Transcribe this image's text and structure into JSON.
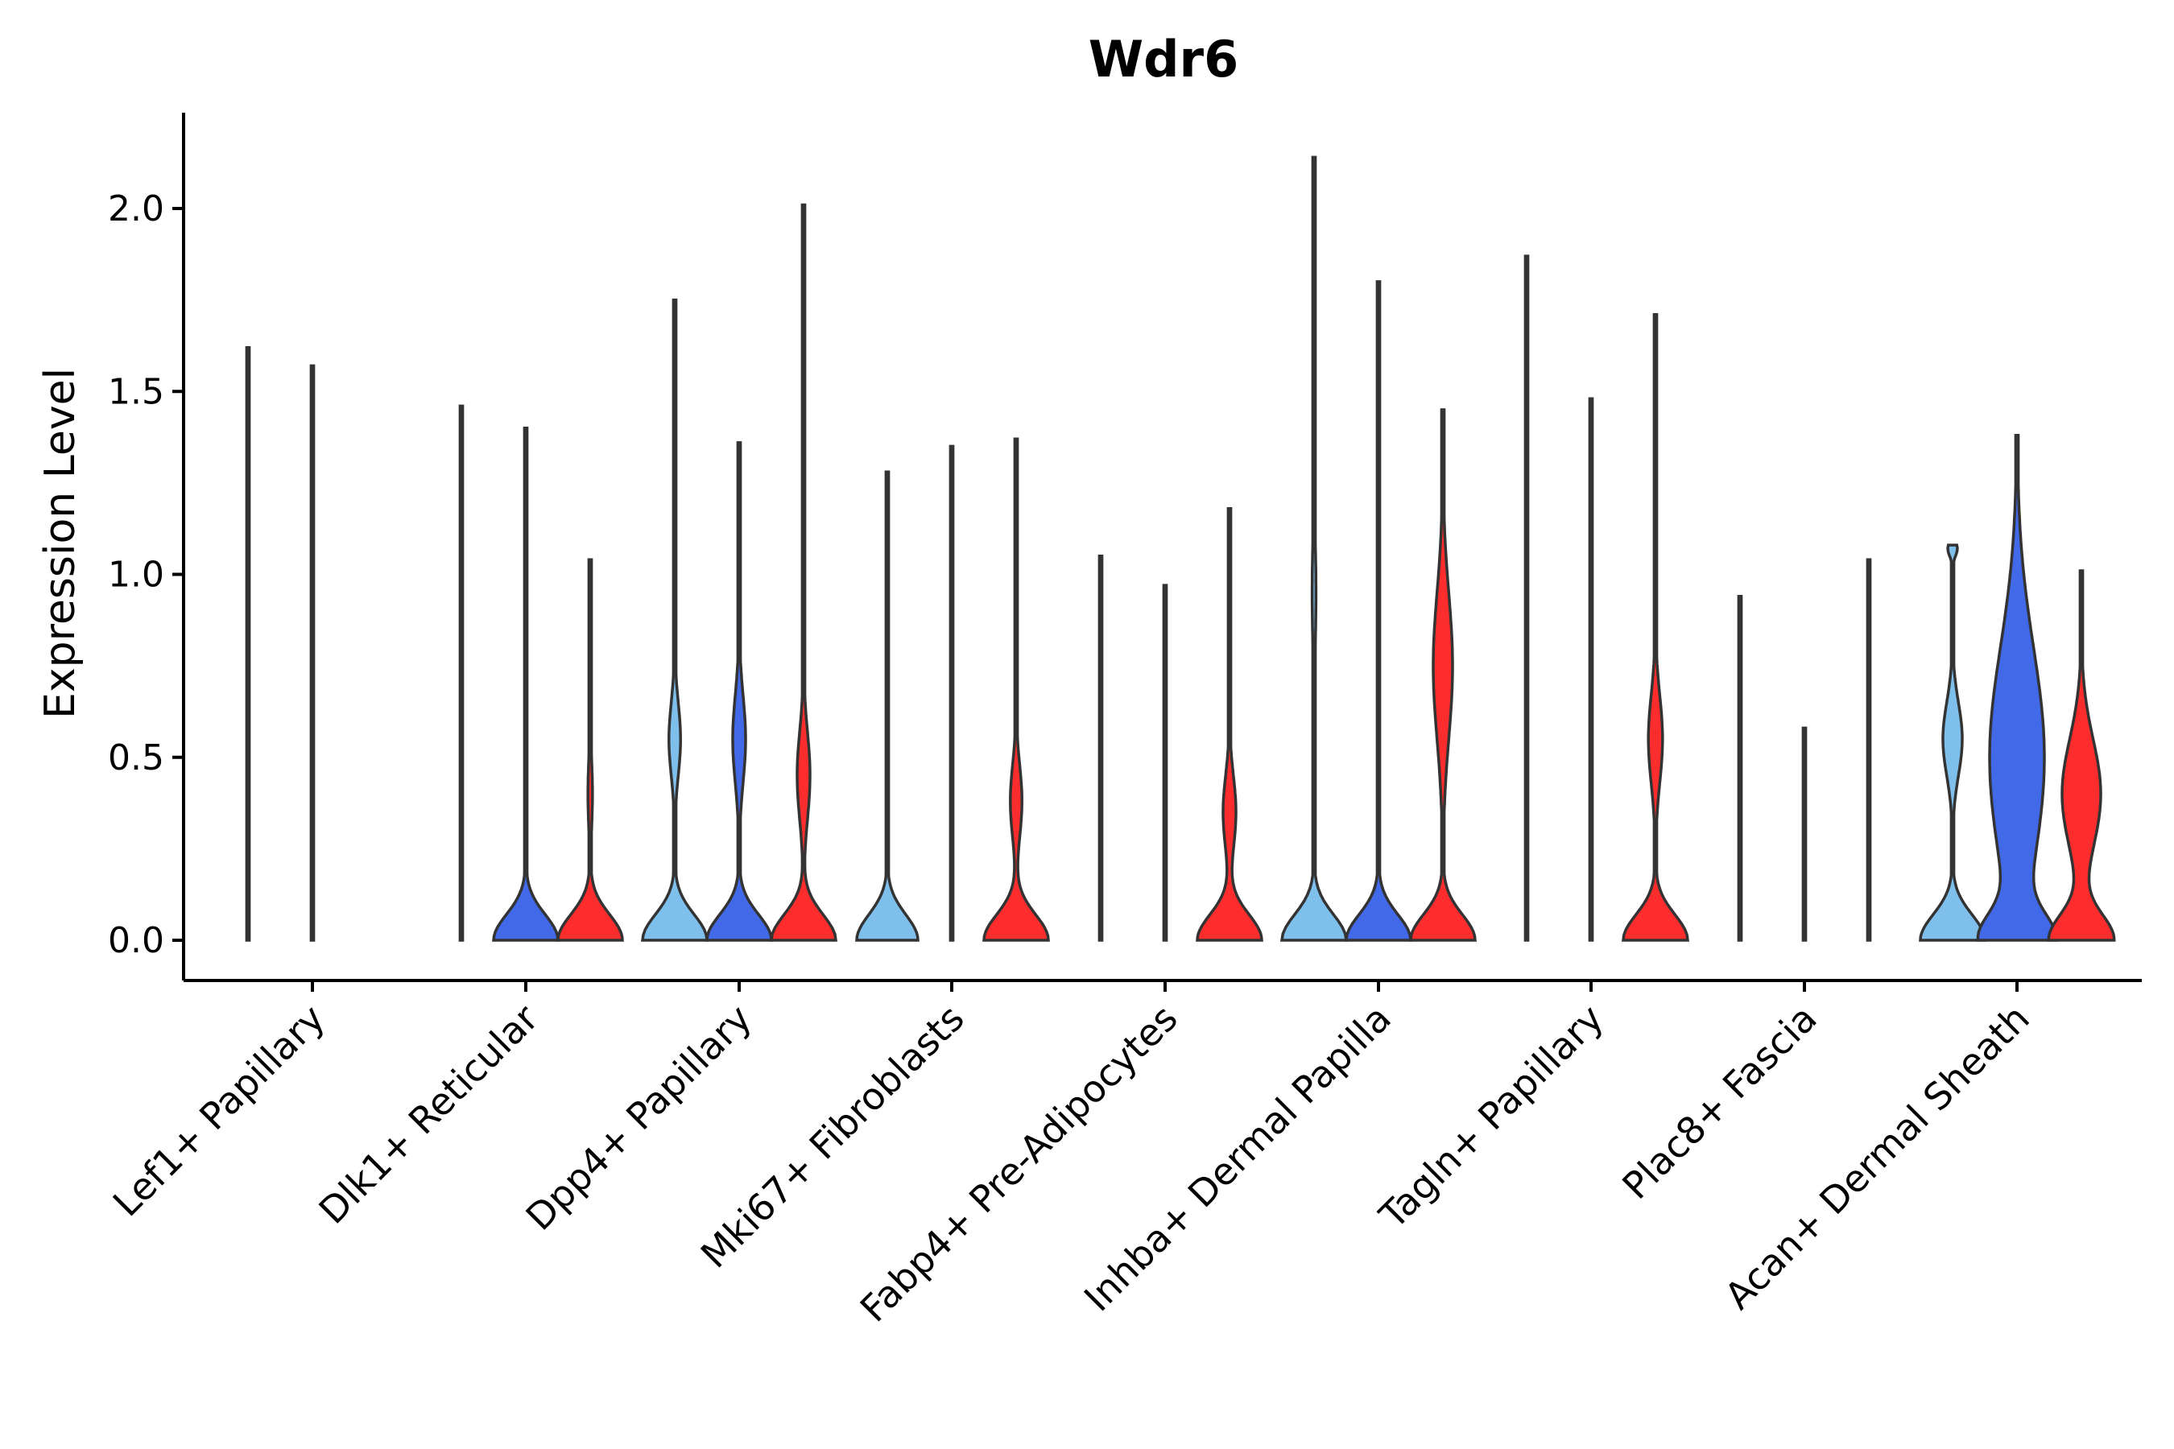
{
  "chart_data": {
    "type": "violin",
    "title": "Wdr6",
    "xlabel": "",
    "ylabel": "Expression Level",
    "ylim": [
      -0.11,
      2.25
    ],
    "yticks": [
      0.0,
      0.5,
      1.0,
      1.5,
      2.0
    ],
    "ytick_labels": [
      "0.0",
      "0.5",
      "1.0",
      "1.5",
      "2.0"
    ],
    "grid": false,
    "legend": "none",
    "series_colors": [
      "#7fbfec",
      "#4169e8",
      "#fe2d2d"
    ],
    "categories": [
      "Lef1+ Papillary",
      "Dlk1+ Reticular",
      "Dpp4+ Papillary",
      "Mki67+ Fibroblasts",
      "Fabp4+ Pre-Adipocytes",
      "Inhba+ Dermal Papilla",
      "Tagln+ Papillary",
      "Plac8+ Fascia",
      "Acan+ Dermal Sheath"
    ],
    "groups": [
      {
        "category": "Lef1+ Papillary",
        "violins": [
          {
            "series": 0,
            "max": 1.62,
            "width0": 0.02,
            "bumps": []
          },
          {
            "series": 1,
            "max": 1.57,
            "width0": 0.02,
            "bumps": []
          },
          {
            "series": 2,
            "max": 0.0,
            "width0": 0.0,
            "bumps": []
          }
        ]
      },
      {
        "category": "Dlk1+ Reticular",
        "violins": [
          {
            "series": 0,
            "max": 1.46,
            "width0": 0.02,
            "bumps": []
          },
          {
            "series": 1,
            "max": 1.4,
            "width0": 1.0,
            "bumps": [
              [
                0.45,
                0.06,
                0.04
              ]
            ]
          },
          {
            "series": 2,
            "max": 1.04,
            "width0": 1.0,
            "bumps": [
              [
                0.4,
                0.1,
                0.07
              ]
            ]
          }
        ]
      },
      {
        "category": "Dpp4+ Papillary",
        "violins": [
          {
            "series": 0,
            "max": 1.75,
            "width0": 1.0,
            "bumps": [
              [
                0.55,
                0.1,
                0.18
              ]
            ]
          },
          {
            "series": 1,
            "max": 1.36,
            "width0": 1.0,
            "bumps": [
              [
                0.55,
                0.12,
                0.2
              ]
            ]
          },
          {
            "series": 2,
            "max": 2.01,
            "width0": 1.0,
            "bumps": [
              [
                0.45,
                0.12,
                0.2
              ]
            ]
          }
        ]
      },
      {
        "category": "Mki67+ Fibroblasts",
        "violins": [
          {
            "series": 0,
            "max": 1.28,
            "width0": 0.95,
            "bumps": []
          },
          {
            "series": 1,
            "max": 1.35,
            "width0": 0.02,
            "bumps": []
          },
          {
            "series": 2,
            "max": 1.37,
            "width0": 1.0,
            "bumps": [
              [
                0.38,
                0.1,
                0.18
              ]
            ]
          }
        ]
      },
      {
        "category": "Fabp4+ Pre-Adipocytes",
        "violins": [
          {
            "series": 0,
            "max": 1.05,
            "width0": 0.02,
            "bumps": []
          },
          {
            "series": 1,
            "max": 0.97,
            "width0": 0.02,
            "bumps": []
          },
          {
            "series": 2,
            "max": 1.18,
            "width0": 1.0,
            "bumps": [
              [
                0.35,
                0.1,
                0.2
              ]
            ]
          }
        ]
      },
      {
        "category": "Inhba+ Dermal Papilla",
        "violins": [
          {
            "series": 0,
            "max": 2.14,
            "width0": 1.0,
            "bumps": [
              [
                0.95,
                0.15,
                0.06
              ]
            ]
          },
          {
            "series": 1,
            "max": 1.8,
            "width0": 1.0,
            "bumps": [
              [
                0.7,
                0.05,
                0.02
              ]
            ]
          },
          {
            "series": 2,
            "max": 1.45,
            "width0": 1.0,
            "bumps": [
              [
                0.75,
                0.2,
                0.3
              ]
            ]
          }
        ]
      },
      {
        "category": "Tagln+ Papillary",
        "violins": [
          {
            "series": 0,
            "max": 1.87,
            "width0": 0.02,
            "bumps": []
          },
          {
            "series": 1,
            "max": 1.48,
            "width0": 0.02,
            "bumps": []
          },
          {
            "series": 2,
            "max": 1.71,
            "width0": 1.0,
            "bumps": [
              [
                0.55,
                0.12,
                0.22
              ]
            ]
          }
        ]
      },
      {
        "category": "Plac8+ Fascia",
        "violins": [
          {
            "series": 0,
            "max": 0.94,
            "width0": 0.02,
            "bumps": []
          },
          {
            "series": 1,
            "max": 0.58,
            "width0": 0.02,
            "bumps": []
          },
          {
            "series": 2,
            "max": 1.04,
            "width0": 0.02,
            "bumps": []
          }
        ]
      },
      {
        "category": "Acan+ Dermal Sheath",
        "violins": [
          {
            "series": 0,
            "max": 1.08,
            "width0": 1.0,
            "bumps": [
              [
                0.55,
                0.1,
                0.3
              ],
              [
                1.07,
                0.02,
                0.15
              ]
            ]
          },
          {
            "series": 1,
            "max": 1.38,
            "width0": 1.0,
            "bumps": [
              [
                0.5,
                0.3,
                0.85
              ]
            ]
          },
          {
            "series": 2,
            "max": 1.01,
            "width0": 1.0,
            "bumps": [
              [
                0.4,
                0.15,
                0.6
              ]
            ]
          }
        ]
      }
    ]
  }
}
